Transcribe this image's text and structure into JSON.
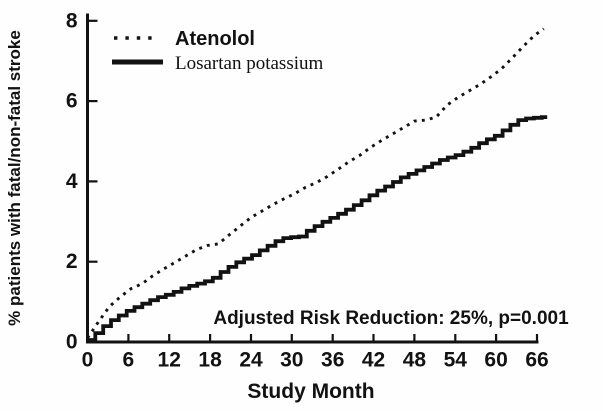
{
  "figure": {
    "background_color": "#fefefe",
    "ink_color": "#121212"
  },
  "chart_data": {
    "type": "line",
    "subtype": "kaplan-meier-cumulative-incidence",
    "title": "",
    "xlabel": "Study Month",
    "ylabel": "% patients with fatal/non-fatal stroke",
    "annotation": "Adjusted Risk Reduction: 25%, p=0.001",
    "xlim": [
      0,
      66
    ],
    "ylim": [
      0,
      8
    ],
    "x_ticks": [
      0,
      6,
      12,
      18,
      24,
      30,
      36,
      42,
      48,
      54,
      60,
      66
    ],
    "y_ticks": [
      0,
      2,
      4,
      6,
      8
    ],
    "grid": false,
    "legend_position": "top-left",
    "series": [
      {
        "name": "Atenolol",
        "style": "dotted",
        "x": [
          0,
          1,
          2,
          3,
          4,
          6,
          8,
          10,
          12,
          14,
          16,
          17.5,
          19.5,
          21,
          22.5,
          24,
          26,
          28,
          30,
          32,
          34,
          36,
          38,
          40,
          42,
          44,
          46,
          48,
          51,
          52,
          54,
          56,
          58,
          60,
          61.5,
          63,
          64.5,
          66,
          67
        ],
        "y": [
          0.1,
          0.35,
          0.6,
          0.85,
          1.0,
          1.3,
          1.45,
          1.7,
          1.9,
          2.1,
          2.3,
          2.4,
          2.45,
          2.7,
          2.9,
          3.1,
          3.3,
          3.5,
          3.65,
          3.85,
          4.0,
          4.2,
          4.45,
          4.65,
          4.9,
          5.1,
          5.3,
          5.5,
          5.55,
          5.8,
          6.05,
          6.25,
          6.45,
          6.7,
          6.9,
          7.2,
          7.45,
          7.7,
          7.8
        ]
      },
      {
        "name": "Losartan potassium",
        "style": "solid",
        "x": [
          0,
          1,
          2,
          3,
          4,
          6,
          8,
          10,
          12,
          14,
          16,
          18,
          20,
          22,
          24,
          26,
          28,
          29,
          31,
          32,
          34,
          36,
          38,
          40,
          42,
          44,
          46,
          48,
          50,
          52,
          54,
          56,
          58,
          60,
          62,
          63.5,
          66.5,
          67.5
        ],
        "y": [
          0.05,
          0.2,
          0.35,
          0.5,
          0.6,
          0.8,
          0.95,
          1.1,
          1.2,
          1.35,
          1.45,
          1.55,
          1.8,
          2.0,
          2.15,
          2.35,
          2.55,
          2.6,
          2.62,
          2.75,
          2.95,
          3.12,
          3.3,
          3.5,
          3.72,
          3.9,
          4.1,
          4.25,
          4.4,
          4.55,
          4.65,
          4.8,
          5.0,
          5.15,
          5.4,
          5.55,
          5.6,
          5.6
        ]
      }
    ]
  }
}
